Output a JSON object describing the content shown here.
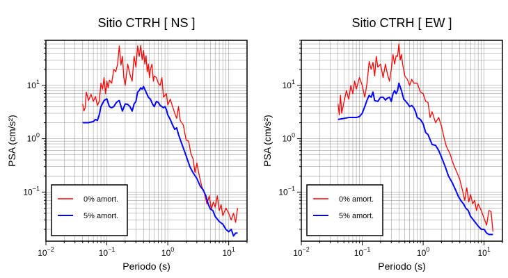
{
  "chart_data": [
    {
      "type": "line",
      "title": "Sitio CTRH [ NS ]",
      "xlabel": "Periodo (s)",
      "ylabel": "PSA (cm/s²)",
      "x_scale": "log",
      "y_scale": "log",
      "xlim": [
        0.01,
        20
      ],
      "ylim": [
        0.012,
        70
      ],
      "grid": true,
      "legend_position": "bottom-left",
      "x_ticks": [
        {
          "value": 0.01,
          "base": "10",
          "exp": "−2"
        },
        {
          "value": 0.1,
          "base": "10",
          "exp": "−1"
        },
        {
          "value": 1,
          "base": "10",
          "exp": "0"
        },
        {
          "value": 10,
          "base": "10",
          "exp": "1"
        }
      ],
      "y_ticks": [
        {
          "value": 0.1,
          "base": "10",
          "exp": "−1"
        },
        {
          "value": 1,
          "base": "10",
          "exp": "0"
        },
        {
          "value": 10,
          "base": "10",
          "exp": "1"
        }
      ],
      "series": [
        {
          "name": "0% amort.",
          "color": "#ff0000",
          "x": [
            0.04,
            0.042,
            0.044,
            0.046,
            0.05,
            0.055,
            0.06,
            0.065,
            0.07,
            0.075,
            0.08,
            0.085,
            0.09,
            0.095,
            0.1,
            0.105,
            0.11,
            0.12,
            0.13,
            0.14,
            0.15,
            0.16,
            0.17,
            0.18,
            0.19,
            0.2,
            0.22,
            0.24,
            0.26,
            0.28,
            0.3,
            0.32,
            0.34,
            0.36,
            0.38,
            0.4,
            0.42,
            0.44,
            0.46,
            0.48,
            0.5,
            0.52,
            0.55,
            0.58,
            0.6,
            0.65,
            0.7,
            0.75,
            0.8,
            0.85,
            0.9,
            0.95,
            1.0,
            1.1,
            1.2,
            1.3,
            1.4,
            1.5,
            1.6,
            1.8,
            2.0,
            2.2,
            2.4,
            2.6,
            2.8,
            3.0,
            3.3,
            3.6,
            4.0,
            4.4,
            4.8,
            5.2,
            5.6,
            6.0,
            6.5,
            7.0,
            7.5,
            8.0,
            9.0,
            10.0,
            11.0,
            12.0,
            13.0,
            14.0
          ],
          "values": [
            4.5,
            3.3,
            3.8,
            7.5,
            5.2,
            6.8,
            5.0,
            6.2,
            4.2,
            5.0,
            11.0,
            8.5,
            14.0,
            7.0,
            12.0,
            9.0,
            12.5,
            11.0,
            20.0,
            18.0,
            25.0,
            55.0,
            24.0,
            35.0,
            14.0,
            10.0,
            25.0,
            16.0,
            12.0,
            35.0,
            22.0,
            55.0,
            35.0,
            56.0,
            30.0,
            45.0,
            25.0,
            36.0,
            18.0,
            25.0,
            14.0,
            20.0,
            25.0,
            12.0,
            15.0,
            14.0,
            11.0,
            10.0,
            14.0,
            6.0,
            6.5,
            7.0,
            4.3,
            5.5,
            4.0,
            3.0,
            2.4,
            4.0,
            2.2,
            1.8,
            0.95,
            0.9,
            0.52,
            0.42,
            0.23,
            0.35,
            0.2,
            0.13,
            0.095,
            0.06,
            0.085,
            0.048,
            0.065,
            0.052,
            0.085,
            0.045,
            0.058,
            0.036,
            0.05,
            0.04,
            0.03,
            0.04,
            0.027,
            0.05
          ]
        },
        {
          "name": "5% amort.",
          "color": "#0000ff",
          "x": [
            0.04,
            0.05,
            0.06,
            0.065,
            0.07,
            0.075,
            0.08,
            0.09,
            0.1,
            0.11,
            0.12,
            0.13,
            0.14,
            0.15,
            0.16,
            0.17,
            0.18,
            0.2,
            0.22,
            0.24,
            0.26,
            0.28,
            0.3,
            0.32,
            0.34,
            0.36,
            0.38,
            0.4,
            0.44,
            0.48,
            0.52,
            0.56,
            0.6,
            0.65,
            0.7,
            0.75,
            0.8,
            0.85,
            0.9,
            0.95,
            1.0,
            1.1,
            1.2,
            1.3,
            1.4,
            1.5,
            1.7,
            2.0,
            2.3,
            2.6,
            3.0,
            3.4,
            3.8,
            4.2,
            4.6,
            5.0,
            5.5,
            6.0,
            7.0,
            8.0,
            9.0,
            10.0,
            11.0,
            12.0,
            13.0,
            14.0
          ],
          "values": [
            2.0,
            2.0,
            2.1,
            2.3,
            2.2,
            2.8,
            4.0,
            5.2,
            5.6,
            4.0,
            3.8,
            4.0,
            4.6,
            5.0,
            5.2,
            4.1,
            3.3,
            4.5,
            4.4,
            4.0,
            3.3,
            4.5,
            5.0,
            7.5,
            8.0,
            9.0,
            8.5,
            9.5,
            7.5,
            6.0,
            5.5,
            4.5,
            4.0,
            5.0,
            4.8,
            4.2,
            4.0,
            3.8,
            4.0,
            3.5,
            2.8,
            2.3,
            1.8,
            1.5,
            1.6,
            1.2,
            0.8,
            0.48,
            0.3,
            0.23,
            0.18,
            0.13,
            0.11,
            0.086,
            0.06,
            0.048,
            0.045,
            0.035,
            0.028,
            0.025,
            0.02,
            0.018,
            0.02,
            0.015,
            0.017,
            0.017
          ]
        }
      ]
    },
    {
      "type": "line",
      "title": "Sitio CTRH [ EW ]",
      "xlabel": "Periodo (s)",
      "ylabel": "PSA (cm/s²)",
      "x_scale": "log",
      "y_scale": "log",
      "xlim": [
        0.01,
        20
      ],
      "ylim": [
        0.012,
        70
      ],
      "grid": true,
      "legend_position": "bottom-left",
      "x_ticks": [
        {
          "value": 0.01,
          "base": "10",
          "exp": "−2"
        },
        {
          "value": 0.1,
          "base": "10",
          "exp": "−1"
        },
        {
          "value": 1,
          "base": "10",
          "exp": "0"
        },
        {
          "value": 10,
          "base": "10",
          "exp": "1"
        }
      ],
      "y_ticks": [
        {
          "value": 0.1,
          "base": "10",
          "exp": "−1"
        },
        {
          "value": 1,
          "base": "10",
          "exp": "0"
        },
        {
          "value": 10,
          "base": "10",
          "exp": "1"
        }
      ],
      "series": [
        {
          "name": "0% amort.",
          "color": "#ff0000",
          "x": [
            0.04,
            0.042,
            0.044,
            0.046,
            0.05,
            0.055,
            0.06,
            0.065,
            0.07,
            0.075,
            0.08,
            0.09,
            0.1,
            0.11,
            0.12,
            0.13,
            0.14,
            0.15,
            0.16,
            0.17,
            0.18,
            0.2,
            0.22,
            0.24,
            0.26,
            0.28,
            0.3,
            0.32,
            0.34,
            0.36,
            0.38,
            0.4,
            0.42,
            0.44,
            0.46,
            0.5,
            0.55,
            0.6,
            0.65,
            0.7,
            0.75,
            0.8,
            0.9,
            1.0,
            1.1,
            1.2,
            1.3,
            1.4,
            1.5,
            1.6,
            1.8,
            2.0,
            2.2,
            2.4,
            2.6,
            2.8,
            3.0,
            3.3,
            3.6,
            4.0,
            4.4,
            4.8,
            5.2,
            5.6,
            6.0,
            6.5,
            7.0,
            7.5,
            8.0,
            9.0,
            10.0,
            11.0,
            12.0,
            13.0,
            14.0
          ],
          "values": [
            4.5,
            2.8,
            6.5,
            3.0,
            4.8,
            8.0,
            5.5,
            10.0,
            7.0,
            12.0,
            8.5,
            14.0,
            10.0,
            6.0,
            11.0,
            28.0,
            20.0,
            27.0,
            15.0,
            35.0,
            22.0,
            25.0,
            14.0,
            25.0,
            16.0,
            12.0,
            20.0,
            38.0,
            25.0,
            36.0,
            35.0,
            60.0,
            30.0,
            38.0,
            25.0,
            15.0,
            13.0,
            10.0,
            13.0,
            11.0,
            11.0,
            11.0,
            7.5,
            7.0,
            5.0,
            4.8,
            2.5,
            3.2,
            2.5,
            2.0,
            2.5,
            1.7,
            1.05,
            0.72,
            0.6,
            0.5,
            0.38,
            0.29,
            0.23,
            0.17,
            0.11,
            0.07,
            0.12,
            0.065,
            0.09,
            0.06,
            0.07,
            0.045,
            0.06,
            0.045,
            0.032,
            0.024,
            0.045,
            0.043,
            0.018
          ]
        },
        {
          "name": "5% amort.",
          "color": "#0000ff",
          "x": [
            0.04,
            0.05,
            0.06,
            0.07,
            0.08,
            0.09,
            0.1,
            0.11,
            0.12,
            0.13,
            0.14,
            0.15,
            0.16,
            0.18,
            0.2,
            0.22,
            0.24,
            0.26,
            0.28,
            0.3,
            0.32,
            0.34,
            0.36,
            0.38,
            0.4,
            0.44,
            0.48,
            0.52,
            0.56,
            0.6,
            0.65,
            0.7,
            0.75,
            0.8,
            0.9,
            1.0,
            1.1,
            1.2,
            1.4,
            1.6,
            1.8,
            2.0,
            2.3,
            2.6,
            3.0,
            3.4,
            3.8,
            4.2,
            4.6,
            5.0,
            5.5,
            6.0,
            7.0,
            8.0,
            9.0,
            10.0,
            11.0,
            12.0,
            13.0,
            14.0
          ],
          "values": [
            2.3,
            2.4,
            2.5,
            2.5,
            2.5,
            2.6,
            3.0,
            4.0,
            5.3,
            6.5,
            6.0,
            7.5,
            5.2,
            5.0,
            6.0,
            6.0,
            5.3,
            5.8,
            6.0,
            5.0,
            7.0,
            8.0,
            7.0,
            8.0,
            11.0,
            8.0,
            5.5,
            5.0,
            4.5,
            4.0,
            4.2,
            3.8,
            3.2,
            2.5,
            2.3,
            1.9,
            1.3,
            1.2,
            0.78,
            0.75,
            0.6,
            0.45,
            0.3,
            0.2,
            0.15,
            0.11,
            0.082,
            0.068,
            0.06,
            0.05,
            0.045,
            0.035,
            0.028,
            0.023,
            0.02,
            0.02,
            0.017,
            0.016,
            0.016,
            0.016
          ]
        }
      ]
    }
  ]
}
